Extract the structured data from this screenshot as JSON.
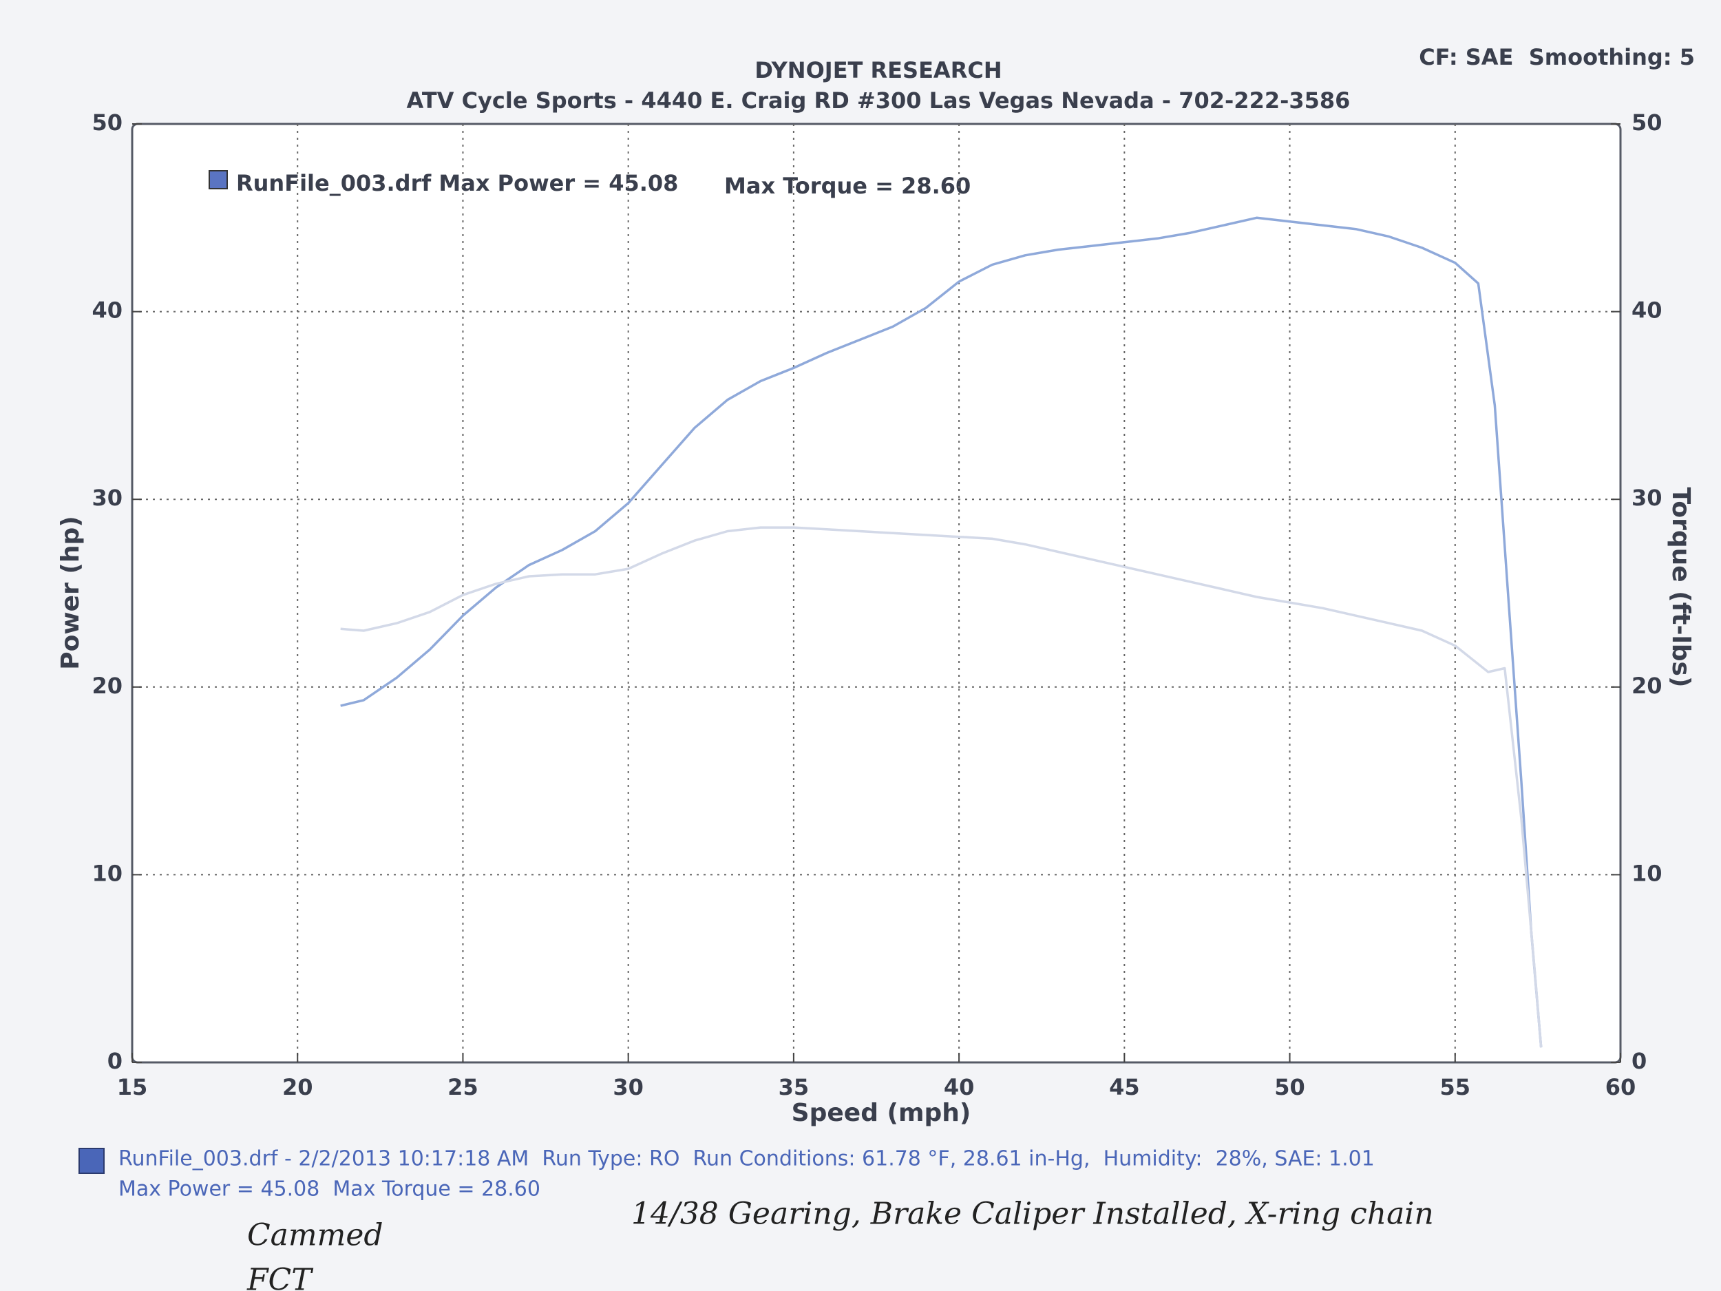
{
  "chart_data": {
    "type": "line",
    "title": "DYNOJET RESEARCH",
    "subtitle": "ATV Cycle Sports - 4440 E. Craig RD #300 Las Vegas Nevada - 702-222-3586",
    "settings_text": "CF: SAE  Smoothing: 5",
    "legend_texts": [
      "RunFile_003.drf Max Power = 45.08",
      "Max Torque = 28.60"
    ],
    "xlabel": "Speed (mph)",
    "ylabel": "Power (hp)",
    "y2label": "Torque (ft-lbs)",
    "xlim": [
      15,
      60
    ],
    "xticks": [
      15,
      20,
      25,
      30,
      35,
      40,
      45,
      50,
      55,
      60
    ],
    "ylim": [
      0,
      50
    ],
    "yticks": [
      0,
      10,
      20,
      30,
      40,
      50
    ],
    "y2lim": [
      0,
      50
    ],
    "y2ticks": [
      0,
      10,
      20,
      30,
      40,
      50
    ],
    "grid": true,
    "series": [
      {
        "color": "#8fa9da",
        "x": [
          21.3,
          22,
          23,
          24,
          25,
          26,
          27,
          28,
          29,
          30,
          31,
          32,
          33,
          34,
          35,
          36,
          37,
          38,
          39,
          40,
          41,
          42,
          43,
          44,
          45,
          46,
          47,
          48,
          49,
          50,
          51,
          52,
          53,
          54,
          55,
          55.7,
          56.2,
          56.6,
          57,
          57.3,
          57.6
        ],
        "values": [
          19.0,
          19.3,
          20.5,
          22.0,
          23.8,
          25.3,
          26.5,
          27.3,
          28.3,
          29.8,
          31.8,
          33.8,
          35.3,
          36.3,
          37.0,
          37.8,
          38.5,
          39.2,
          40.2,
          41.6,
          42.5,
          43.0,
          43.3,
          43.5,
          43.7,
          43.9,
          44.2,
          44.6,
          45.0,
          44.8,
          44.6,
          44.4,
          44.0,
          43.4,
          42.6,
          41.5,
          35,
          25,
          15,
          7,
          0.8
        ]
      },
      {
        "color": "#d3d9e8",
        "axis": "y2",
        "x": [
          21.3,
          22,
          23,
          24,
          25,
          26,
          27,
          28,
          29,
          30,
          31,
          32,
          33,
          34,
          35,
          36,
          37,
          38,
          39,
          40,
          41,
          42,
          43,
          44,
          45,
          46,
          47,
          48,
          49,
          50,
          51,
          52,
          53,
          54,
          55,
          56,
          56.5,
          57,
          57.4,
          57.6
        ],
        "values": [
          23.1,
          23.0,
          23.4,
          24.0,
          24.9,
          25.5,
          25.9,
          26.0,
          26.0,
          26.3,
          27.1,
          27.8,
          28.3,
          28.5,
          28.5,
          28.4,
          28.3,
          28.2,
          28.1,
          28.0,
          27.9,
          27.6,
          27.2,
          26.8,
          26.4,
          26.0,
          25.6,
          25.2,
          24.8,
          24.5,
          24.2,
          23.8,
          23.4,
          23.0,
          22.2,
          20.8,
          21.0,
          13,
          5,
          0.8
        ]
      }
    ],
    "footer": [
      "RunFile_003.drf - 2/2/2013 10:17:18 AM  Run Type: RO  Run Conditions: 61.78 °F, 28.61 in-Hg,  Humidity:  28%, SAE: 1.01",
      "Max Power = 45.08  Max Torque = 28.60"
    ],
    "notes": [
      "14/38 Gearing, Brake Caliper Installed, X-ring chain",
      "Cammed",
      "FCT"
    ]
  }
}
